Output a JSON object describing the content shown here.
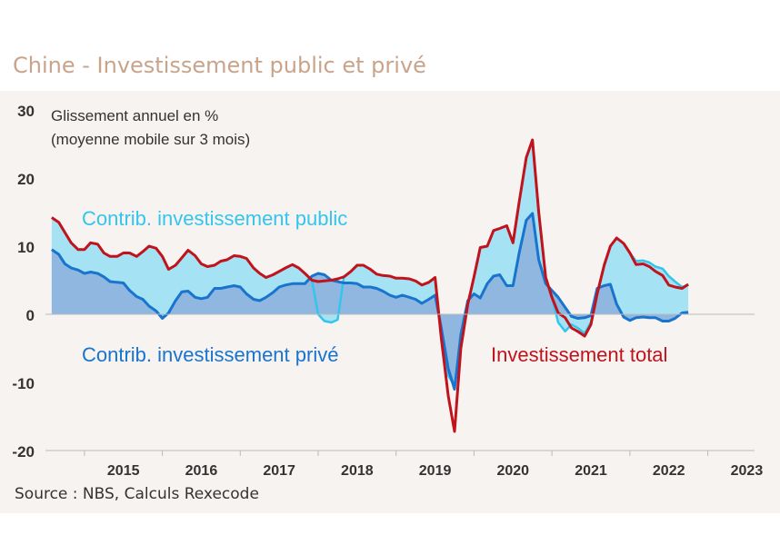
{
  "title": "Chine - Investissement public et privé",
  "source": "Source : NBS, Calculs Rexecode",
  "chart_data": {
    "type": "area",
    "ylabel": "Glissement annuel en %",
    "ylabel2": "(moyenne mobile sur 3 mois)",
    "ylim": [
      -20,
      30
    ],
    "yticks": [
      30,
      20,
      10,
      0,
      -10,
      -20
    ],
    "xlim": [
      2014.5,
      2023.6
    ],
    "xticks": [
      "2015",
      "2016",
      "2017",
      "2018",
      "2019",
      "2020",
      "2021",
      "2022",
      "2023"
    ],
    "grid": false,
    "annotations": {
      "public": "Contrib. investissement public",
      "private": "Contrib. investissement privé",
      "total": "Investissement total"
    },
    "colors": {
      "public_fill": "#a5e3f4",
      "public_line": "#33c5ee",
      "private_fill": "#8fb7df",
      "private_line": "#1874cd",
      "total_line": "#c0131c",
      "axis": "#bbbbbb",
      "text": "#333333"
    },
    "series": [
      {
        "name": "Investissement total",
        "x": [
          2014.58,
          2014.67,
          2014.75,
          2014.83,
          2014.92,
          2015.0,
          2015.08,
          2015.17,
          2015.25,
          2015.33,
          2015.42,
          2015.5,
          2015.58,
          2015.67,
          2015.75,
          2015.83,
          2015.92,
          2016.0,
          2016.08,
          2016.17,
          2016.25,
          2016.33,
          2016.42,
          2016.5,
          2016.58,
          2016.67,
          2016.75,
          2016.83,
          2016.92,
          2017.0,
          2017.08,
          2017.17,
          2017.25,
          2017.33,
          2017.42,
          2017.5,
          2017.58,
          2017.67,
          2017.75,
          2017.83,
          2017.92,
          2018.0,
          2018.08,
          2018.17,
          2018.25,
          2018.33,
          2018.42,
          2018.5,
          2018.58,
          2018.67,
          2018.75,
          2018.83,
          2018.92,
          2019.0,
          2019.08,
          2019.17,
          2019.25,
          2019.33,
          2019.42,
          2019.5,
          2019.58,
          2019.67,
          2019.75,
          2019.83,
          2019.92,
          2020.0,
          2020.08,
          2020.17,
          2020.25,
          2020.33,
          2020.42,
          2020.5,
          2020.58,
          2020.67,
          2020.75,
          2020.83,
          2020.92,
          2021.0,
          2021.08,
          2021.17,
          2021.25,
          2021.33,
          2021.42,
          2021.5,
          2021.58,
          2021.67,
          2021.75,
          2021.83,
          2021.92,
          2022.0,
          2022.08,
          2022.17,
          2022.25,
          2022.33,
          2022.42,
          2022.5,
          2022.58,
          2022.67,
          2022.75
        ],
        "values": [
          14.2,
          13.5,
          12.0,
          10.5,
          9.5,
          9.5,
          10.5,
          10.3,
          9.0,
          8.5,
          8.5,
          9.0,
          9.0,
          8.5,
          9.2,
          10.0,
          9.7,
          8.5,
          6.6,
          7.2,
          8.3,
          9.4,
          8.6,
          7.4,
          7.0,
          7.2,
          7.8,
          8.0,
          8.6,
          8.5,
          8.2,
          6.8,
          6.0,
          5.4,
          5.8,
          6.3,
          6.8,
          7.3,
          6.8,
          6.0,
          5.0,
          4.8,
          4.9,
          5.0,
          5.2,
          5.5,
          6.3,
          7.2,
          7.2,
          6.6,
          5.9,
          5.7,
          5.6,
          5.3,
          5.3,
          5.2,
          4.9,
          4.3,
          4.7,
          5.4,
          -3.5,
          -12.0,
          -17.2,
          -5.0,
          1.5,
          5.5,
          9.8,
          10.0,
          12.3,
          12.6,
          13.0,
          10.5,
          16.5,
          23.0,
          25.6,
          15.0,
          5.4,
          2.5,
          0.2,
          -0.5,
          -2.0,
          -2.5,
          -3.2,
          -1.5,
          3.0,
          7.2,
          10.0,
          11.2,
          10.4,
          9.0,
          7.3,
          7.4,
          7.0,
          6.3,
          5.7,
          4.3,
          4.0,
          3.8,
          4.4
        ]
      },
      {
        "name": "Contrib. investissement public",
        "x": [
          2014.58,
          2014.67,
          2014.75,
          2014.83,
          2014.92,
          2015.0,
          2015.08,
          2015.17,
          2015.25,
          2015.33,
          2015.42,
          2015.5,
          2015.58,
          2015.67,
          2015.75,
          2015.83,
          2015.92,
          2016.0,
          2016.08,
          2016.17,
          2016.25,
          2016.33,
          2016.42,
          2016.5,
          2016.58,
          2016.67,
          2016.75,
          2016.83,
          2016.92,
          2017.0,
          2017.08,
          2017.17,
          2017.25,
          2017.33,
          2017.42,
          2017.5,
          2017.58,
          2017.67,
          2017.75,
          2017.83,
          2017.92,
          2018.0,
          2018.08,
          2018.17,
          2018.25,
          2018.33,
          2018.42,
          2018.5,
          2018.58,
          2018.67,
          2018.75,
          2018.83,
          2018.92,
          2019.0,
          2019.08,
          2019.17,
          2019.25,
          2019.33,
          2019.42,
          2019.5,
          2019.58,
          2019.67,
          2019.75,
          2019.83,
          2019.92,
          2020.0,
          2020.08,
          2020.17,
          2020.25,
          2020.33,
          2020.42,
          2020.5,
          2020.58,
          2020.67,
          2020.75,
          2020.83,
          2020.92,
          2021.0,
          2021.08,
          2021.17,
          2021.25,
          2021.33,
          2021.42,
          2021.5,
          2021.58,
          2021.67,
          2021.75,
          2021.83,
          2021.92,
          2022.0,
          2022.08,
          2022.17,
          2022.25,
          2022.33,
          2022.42,
          2022.5,
          2022.58,
          2022.67,
          2022.75
        ],
        "values": [
          14.2,
          13.5,
          12.0,
          10.5,
          9.5,
          9.5,
          10.5,
          10.3,
          9.0,
          8.5,
          8.5,
          9.0,
          9.0,
          8.5,
          9.2,
          10.0,
          9.7,
          8.5,
          6.6,
          7.2,
          8.3,
          9.4,
          8.6,
          7.4,
          7.0,
          7.2,
          7.8,
          8.0,
          8.6,
          8.5,
          8.2,
          6.8,
          6.0,
          5.4,
          5.8,
          6.3,
          6.8,
          7.3,
          6.8,
          6.0,
          5.0,
          0.0,
          -1.0,
          -1.2,
          -0.8,
          5.5,
          6.3,
          7.2,
          7.2,
          6.6,
          5.9,
          5.7,
          5.6,
          5.3,
          5.3,
          5.2,
          4.9,
          4.3,
          4.7,
          5.4,
          -3.5,
          -9.0,
          -10.5,
          -5.0,
          1.5,
          5.5,
          9.8,
          10.0,
          12.3,
          12.6,
          13.0,
          10.5,
          16.5,
          23.0,
          25.6,
          15.0,
          5.4,
          2.5,
          -1.2,
          -2.5,
          -1.5,
          -2.0,
          -2.8,
          -1.2,
          3.0,
          7.2,
          10.0,
          11.2,
          10.4,
          9.0,
          7.8,
          7.9,
          7.6,
          7.0,
          6.7,
          5.6,
          4.8,
          4.0,
          4.3
        ]
      },
      {
        "name": "Contrib. investissement privé",
        "x": [
          2014.58,
          2014.67,
          2014.75,
          2014.83,
          2014.92,
          2015.0,
          2015.08,
          2015.17,
          2015.25,
          2015.33,
          2015.42,
          2015.5,
          2015.58,
          2015.67,
          2015.75,
          2015.83,
          2015.92,
          2016.0,
          2016.08,
          2016.17,
          2016.25,
          2016.33,
          2016.42,
          2016.5,
          2016.58,
          2016.67,
          2016.75,
          2016.83,
          2016.92,
          2017.0,
          2017.08,
          2017.17,
          2017.25,
          2017.33,
          2017.42,
          2017.5,
          2017.58,
          2017.67,
          2017.75,
          2017.83,
          2017.92,
          2018.0,
          2018.08,
          2018.17,
          2018.25,
          2018.33,
          2018.42,
          2018.5,
          2018.58,
          2018.67,
          2018.75,
          2018.83,
          2018.92,
          2019.0,
          2019.08,
          2019.17,
          2019.25,
          2019.33,
          2019.42,
          2019.5,
          2019.58,
          2019.67,
          2019.75,
          2019.83,
          2019.92,
          2020.0,
          2020.08,
          2020.17,
          2020.25,
          2020.33,
          2020.42,
          2020.5,
          2020.58,
          2020.67,
          2020.75,
          2020.83,
          2020.92,
          2021.0,
          2021.08,
          2021.17,
          2021.25,
          2021.33,
          2021.42,
          2021.5,
          2021.58,
          2021.67,
          2021.75,
          2021.83,
          2021.92,
          2022.0,
          2022.08,
          2022.17,
          2022.25,
          2022.33,
          2022.42,
          2022.5,
          2022.58,
          2022.67,
          2022.75
        ],
        "values": [
          9.5,
          8.8,
          7.4,
          6.8,
          6.5,
          6.0,
          6.2,
          6.0,
          5.5,
          4.8,
          4.7,
          4.6,
          3.5,
          2.6,
          2.2,
          1.2,
          0.5,
          -0.6,
          0.2,
          2.0,
          3.3,
          3.4,
          2.5,
          2.3,
          2.5,
          3.8,
          3.8,
          4.0,
          4.2,
          4.0,
          3.0,
          2.2,
          2.0,
          2.5,
          3.2,
          4.0,
          4.3,
          4.5,
          4.5,
          4.5,
          5.6,
          6.0,
          5.8,
          5.0,
          4.8,
          4.6,
          4.6,
          4.5,
          4.0,
          4.0,
          3.8,
          3.4,
          2.8,
          2.5,
          2.8,
          2.5,
          2.2,
          1.6,
          2.2,
          2.8,
          -2.0,
          -8.0,
          -11.0,
          -3.0,
          2.0,
          3.0,
          2.4,
          4.5,
          5.6,
          5.8,
          4.2,
          4.2,
          9.0,
          13.8,
          14.8,
          8.0,
          4.5,
          3.5,
          2.5,
          1.0,
          -0.3,
          -0.6,
          -0.5,
          -0.2,
          3.8,
          4.2,
          4.4,
          1.5,
          -0.4,
          -0.9,
          -0.5,
          -0.4,
          -0.5,
          -0.5,
          -1.0,
          -1.0,
          -0.6,
          0.2,
          0.3
        ]
      }
    ]
  }
}
